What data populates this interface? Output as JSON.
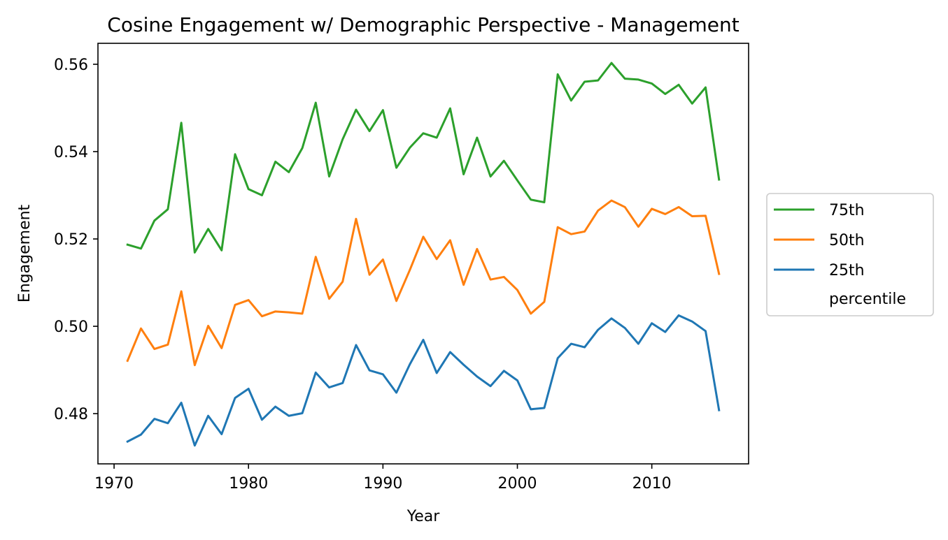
{
  "chart_data": {
    "type": "line",
    "title": "Cosine Engagement w/ Demographic Perspective - Management",
    "xlabel": "Year",
    "ylabel": "Engagement",
    "xlim": [
      1968.8,
      2017.2
    ],
    "ylim": [
      0.4685,
      0.5648
    ],
    "x_ticks": [
      1970,
      1980,
      1990,
      2000,
      2010
    ],
    "y_ticks": [
      0.48,
      0.5,
      0.52,
      0.54,
      0.56
    ],
    "x_tick_labels": [
      "1970",
      "1980",
      "1990",
      "2000",
      "2010"
    ],
    "y_tick_labels": [
      "0.48",
      "0.50",
      "0.52",
      "0.54",
      "0.56"
    ],
    "grid": false,
    "legend_position": "center-right-outside",
    "legend_title": "percentile",
    "x": [
      1971,
      1972,
      1973,
      1974,
      1975,
      1976,
      1977,
      1978,
      1979,
      1980,
      1981,
      1982,
      1983,
      1984,
      1985,
      1986,
      1987,
      1988,
      1989,
      1990,
      1991,
      1992,
      1993,
      1994,
      1995,
      1996,
      1997,
      1998,
      1999,
      2000,
      2001,
      2002,
      2003,
      2004,
      2005,
      2006,
      2007,
      2008,
      2009,
      2010,
      2011,
      2012,
      2013,
      2014,
      2015
    ],
    "series": [
      {
        "name": "75th",
        "color": "#2ca02c",
        "values": [
          0.5187,
          0.5178,
          0.5242,
          0.5268,
          0.5466,
          0.5169,
          0.5223,
          0.5174,
          0.5394,
          0.5314,
          0.53,
          0.5377,
          0.5353,
          0.5408,
          0.5512,
          0.5343,
          0.5428,
          0.5496,
          0.5447,
          0.5495,
          0.5363,
          0.5409,
          0.5442,
          0.5432,
          0.5499,
          0.5348,
          0.5432,
          0.5343,
          0.5379,
          0.5334,
          0.529,
          0.5284,
          0.5577,
          0.5517,
          0.556,
          0.5563,
          0.5603,
          0.5567,
          0.5565,
          0.5556,
          0.5532,
          0.5553,
          0.551,
          0.5547,
          0.5336
        ]
      },
      {
        "name": "50th",
        "color": "#ff7f0e",
        "values": [
          0.4921,
          0.4995,
          0.4948,
          0.4958,
          0.508,
          0.4911,
          0.5001,
          0.495,
          0.5049,
          0.506,
          0.5023,
          0.5034,
          0.5032,
          0.5029,
          0.5159,
          0.5063,
          0.5102,
          0.5246,
          0.5118,
          0.5153,
          0.5058,
          0.5129,
          0.5205,
          0.5154,
          0.5197,
          0.5095,
          0.5177,
          0.5107,
          0.5113,
          0.5083,
          0.5029,
          0.5056,
          0.5227,
          0.5211,
          0.5217,
          0.5265,
          0.5288,
          0.5273,
          0.5228,
          0.5269,
          0.5257,
          0.5273,
          0.5252,
          0.5253,
          0.512
        ]
      },
      {
        "name": "25th",
        "color": "#1f77b4",
        "values": [
          0.4736,
          0.4752,
          0.4788,
          0.4778,
          0.4825,
          0.4727,
          0.4795,
          0.4753,
          0.4836,
          0.4857,
          0.4786,
          0.4816,
          0.4795,
          0.4801,
          0.4894,
          0.486,
          0.487,
          0.4957,
          0.4899,
          0.489,
          0.4848,
          0.4913,
          0.4969,
          0.4893,
          0.4941,
          0.4912,
          0.4885,
          0.4863,
          0.4898,
          0.4876,
          0.481,
          0.4813,
          0.4927,
          0.496,
          0.4952,
          0.4992,
          0.5018,
          0.4996,
          0.496,
          0.5007,
          0.4987,
          0.5025,
          0.5011,
          0.4989,
          0.4808
        ]
      }
    ]
  }
}
